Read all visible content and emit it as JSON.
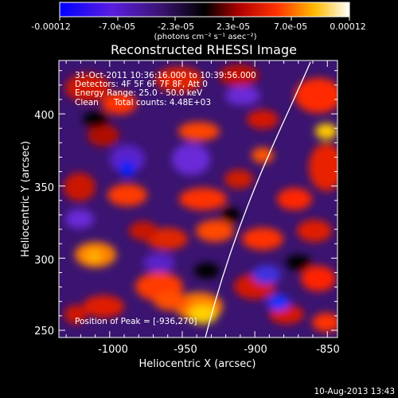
{
  "chart_data": {
    "type": "heatmap",
    "title": "Reconstructed RHESSI Image",
    "colorbar": {
      "ticks": [
        "-0.00012",
        "-7.0e-05",
        "-2.3e-05",
        "2.3e-05",
        "7.0e-05",
        "0.00012"
      ],
      "units": "(photons cm⁻² s⁻¹ asec⁻²)",
      "colormap": [
        "#0000ff",
        "#8a2be2",
        "#000000",
        "#ff0000",
        "#ff9900",
        "#ffffff"
      ]
    },
    "annotations": {
      "time": "31-Oct-2011 10:36:16.000 to 10:39:56.000",
      "detectors": "Detectors: 4F 5F 6F 7F 8F, Att 0",
      "energy": "Energy Range: 25.0 - 50.0 keV",
      "clean": "Clean",
      "counts": "Total counts: 4.48E+03",
      "peak": "Position of Peak = [-936,270]"
    },
    "xlabel": "Heliocentric X (arcsec)",
    "ylabel": "Heliocentric Y (arcsec)",
    "xlim": [
      -1035,
      -843
    ],
    "ylim": [
      245,
      437
    ],
    "xticks": [
      -1000,
      -950,
      -900,
      -850
    ],
    "xtick_labels": [
      "-1000",
      "-950",
      "-900",
      "-850"
    ],
    "yticks": [
      250,
      300,
      350,
      400
    ],
    "ytick_labels": [
      "250",
      "300",
      "350",
      "400"
    ],
    "peak": [
      -936,
      270
    ],
    "footer_date": "10-Aug-2013 13:43"
  }
}
